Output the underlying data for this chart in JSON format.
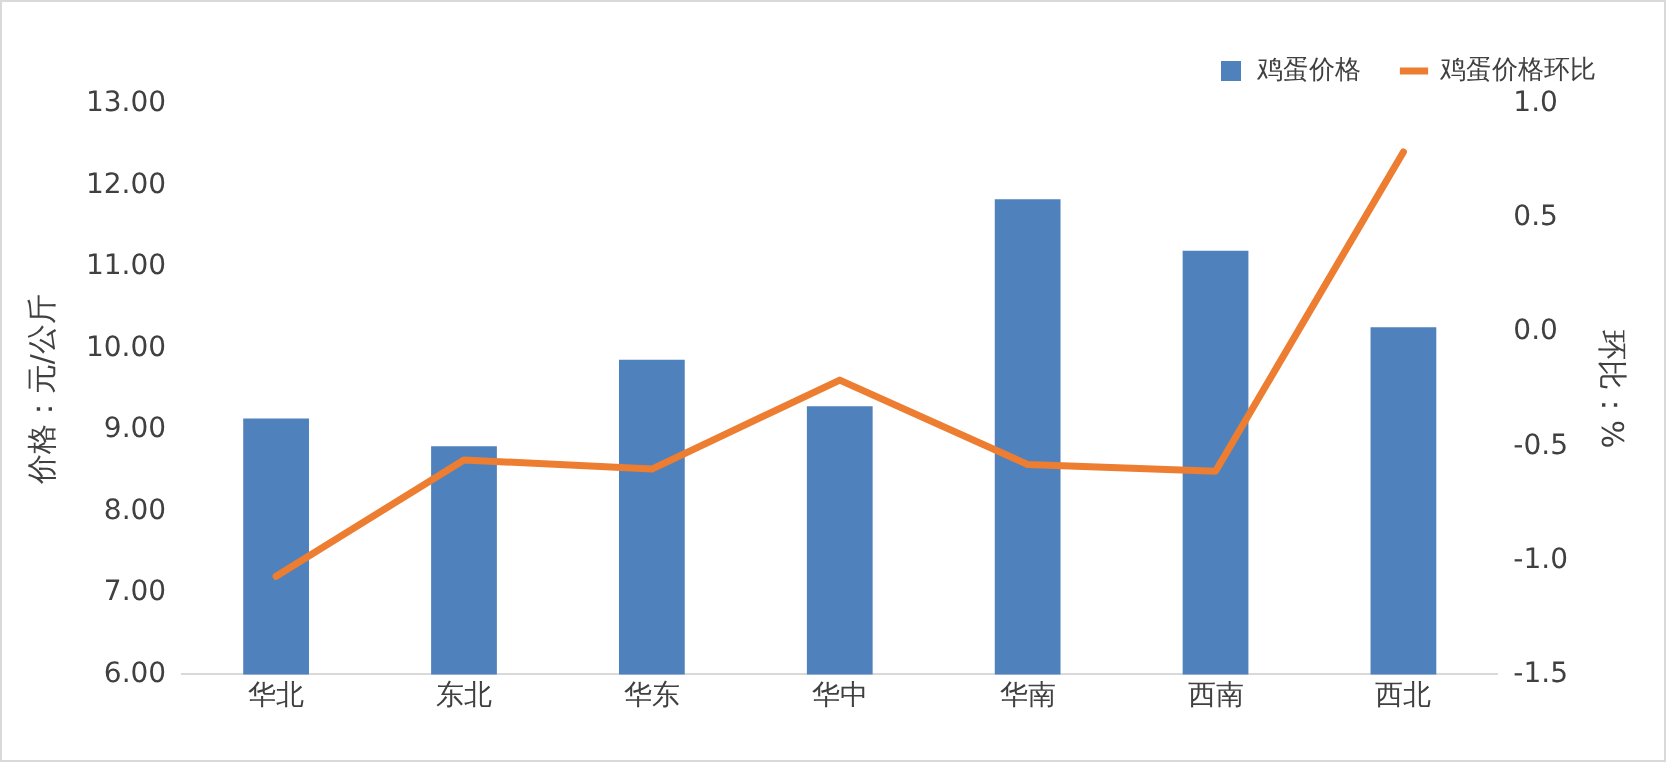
{
  "chart_data": {
    "type": "bar",
    "categories": [
      "华北",
      "东北",
      "华东",
      "华中",
      "华南",
      "西南",
      "西北"
    ],
    "series": [
      {
        "name": "鸡蛋价格",
        "color": "#4f81bd",
        "values": [
          9.14,
          8.8,
          9.86,
          9.29,
          11.83,
          11.2,
          10.26
        ]
      },
      {
        "name": "鸡蛋价格环比",
        "type": "line",
        "axis": "y2",
        "color": "#ed7d31",
        "marker": "none",
        "values": [
          -1.07,
          -0.56,
          -0.6,
          -0.21,
          -0.58,
          -0.61,
          0.79
        ]
      }
    ],
    "ylabel": "价格：元/公斤",
    "y2label": "环比：%",
    "ylim": [
      6,
      13
    ],
    "yticks": [
      {
        "value": 6,
        "label": "6.00"
      },
      {
        "value": 7,
        "label": "7.00"
      },
      {
        "value": 8,
        "label": "8.00"
      },
      {
        "value": 9,
        "label": "9.00"
      },
      {
        "value": 10,
        "label": "10.00"
      },
      {
        "value": 11,
        "label": "11.00"
      },
      {
        "value": 12,
        "label": "12.00"
      },
      {
        "value": 13,
        "label": "13.00"
      }
    ],
    "y2lim": [
      -1.5,
      1
    ],
    "y2ticks": [
      {
        "value": -1.5,
        "label": "-1.5"
      },
      {
        "value": -1,
        "label": "-1.0"
      },
      {
        "value": -0.5,
        "label": "-0.5"
      },
      {
        "value": 0,
        "label": "0.0"
      },
      {
        "value": 0.5,
        "label": "0.5"
      },
      {
        "value": 1,
        "label": "1.0"
      }
    ],
    "grid": false,
    "legend": "top right"
  }
}
